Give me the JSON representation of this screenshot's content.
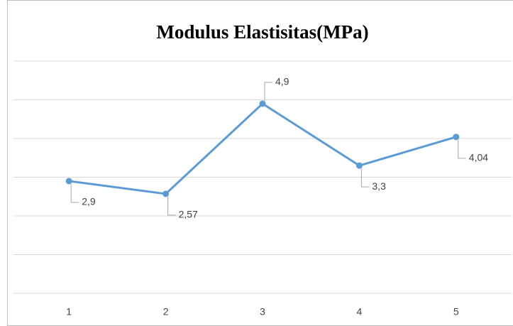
{
  "chart_data": {
    "type": "line",
    "title": "Modulus Elastisitas(MPa)",
    "categories": [
      "1",
      "2",
      "3",
      "4",
      "5"
    ],
    "values": [
      2.9,
      2.57,
      4.9,
      3.3,
      4.04
    ],
    "value_labels": [
      "2,9",
      "2,57",
      "4,9",
      "3,3",
      "4,04"
    ],
    "color": "#5b9bd5",
    "ylim": [
      0,
      6
    ],
    "yticks": [
      0,
      1,
      2,
      3,
      4,
      5,
      6
    ],
    "grid": true
  }
}
